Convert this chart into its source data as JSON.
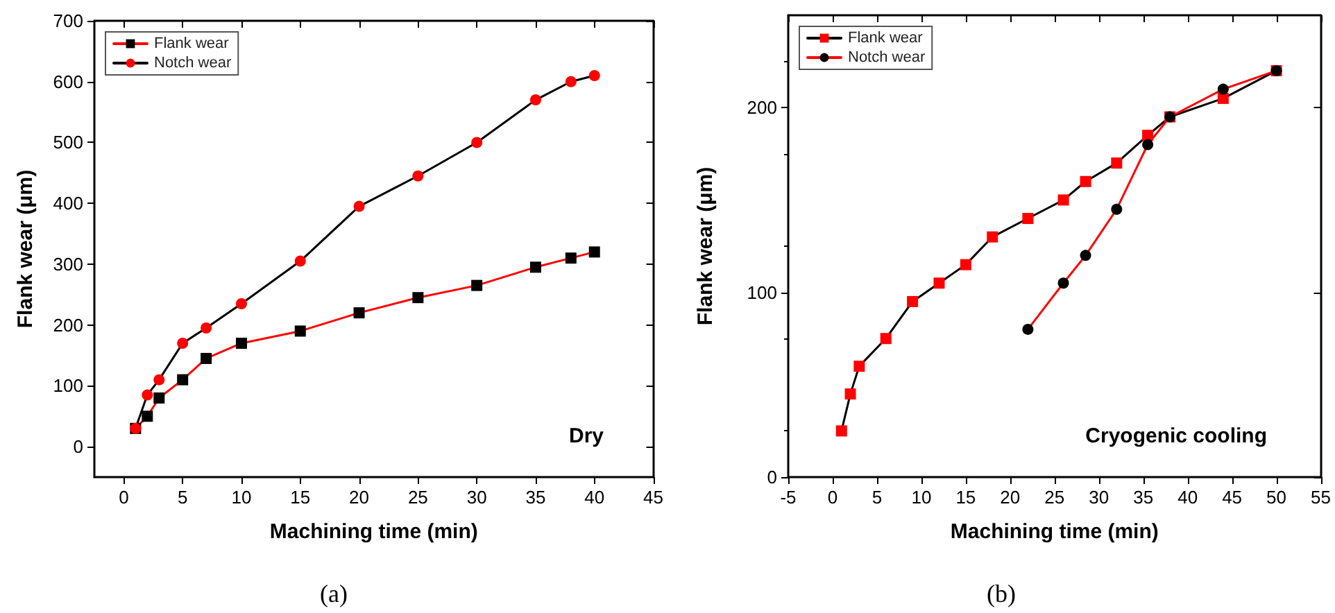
{
  "chart_data": [
    {
      "type": "line",
      "xlabel": "Machining time (min)",
      "ylabel": "Flank wear (μm)",
      "xlim": [
        -2.5,
        45
      ],
      "xticks": [
        0,
        5,
        10,
        15,
        20,
        25,
        30,
        35,
        40,
        45
      ],
      "ylim": [
        -50,
        700
      ],
      "yticks": [
        0,
        100,
        200,
        300,
        400,
        500,
        600,
        700
      ],
      "grid": false,
      "legend": "top left",
      "line_style": "solid",
      "annotations": [
        "Dry",
        "(a)"
      ],
      "series": [
        {
          "name": "Flank wear",
          "marker": "square",
          "color": "#ff0000",
          "colors": [
            "#000000",
            "#000000",
            "#000000",
            "#000000",
            "#000000",
            "#000000",
            "#000000",
            "#000000",
            "#000000",
            "#000000",
            "#000000",
            "#000000",
            "#000000"
          ],
          "x": [
            1,
            2,
            3,
            5,
            7,
            10,
            15,
            20,
            25,
            30,
            35,
            38,
            40
          ],
          "values": [
            30,
            50,
            80,
            110,
            145,
            170,
            190,
            220,
            245,
            265,
            295,
            310,
            320
          ]
        },
        {
          "name": "Notch wear",
          "marker": "circle",
          "color": "#000000",
          "colors": [
            "#ff0000",
            "#ff0000",
            "#ff0000",
            "#ff0000",
            "#ff0000",
            "#ff0000",
            "#ff0000",
            "#ff0000",
            "#ff0000",
            "#ff0000",
            "#ff0000",
            "#ff0000",
            "#ff0000"
          ],
          "x": [
            1,
            2,
            3,
            5,
            7,
            10,
            15,
            20,
            25,
            30,
            35,
            38,
            40
          ],
          "values": [
            30,
            85,
            110,
            170,
            195,
            235,
            305,
            395,
            445,
            500,
            570,
            600,
            610
          ]
        }
      ]
    },
    {
      "type": "line",
      "xlabel": "Machining time (min)",
      "ylabel": "Flank wear (μm)",
      "xlim": [
        -5,
        55
      ],
      "xticks": [
        -5,
        0,
        5,
        10,
        15,
        20,
        25,
        30,
        35,
        40,
        45,
        50,
        55
      ],
      "ylim": [
        0,
        250
      ],
      "yticks": [
        0,
        100,
        200
      ],
      "grid": false,
      "legend": "top left",
      "line_style": "solid",
      "annotations": [
        "Cryogenic cooling",
        "(b)"
      ],
      "series": [
        {
          "name": "Flank wear",
          "marker": "square",
          "color": "#000000",
          "colors": [
            "#ff0000",
            "#ff0000",
            "#ff0000",
            "#ff0000",
            "#ff0000",
            "#ff0000",
            "#ff0000",
            "#ff0000",
            "#ff0000",
            "#ff0000",
            "#ff0000",
            "#ff0000",
            "#ff0000",
            "#ff0000",
            "#ff0000",
            "#ff0000"
          ],
          "x": [
            1,
            2,
            3,
            6,
            9,
            12,
            15,
            18,
            22,
            26,
            28.5,
            32,
            35.5,
            38,
            44,
            50
          ],
          "values": [
            25,
            45,
            60,
            75,
            95,
            105,
            115,
            130,
            140,
            150,
            160,
            170,
            185,
            195,
            205,
            220
          ]
        },
        {
          "name": "Notch wear",
          "marker": "circle",
          "color": "#ff0000",
          "colors": [
            "#000000",
            "#000000",
            "#000000",
            "#000000",
            "#000000",
            "#000000",
            "#000000",
            "#000000"
          ],
          "x": [
            22,
            26,
            28.5,
            32,
            35.5,
            38,
            44,
            50
          ],
          "values": [
            80,
            105,
            120,
            145,
            180,
            195,
            210,
            220
          ]
        }
      ]
    }
  ]
}
